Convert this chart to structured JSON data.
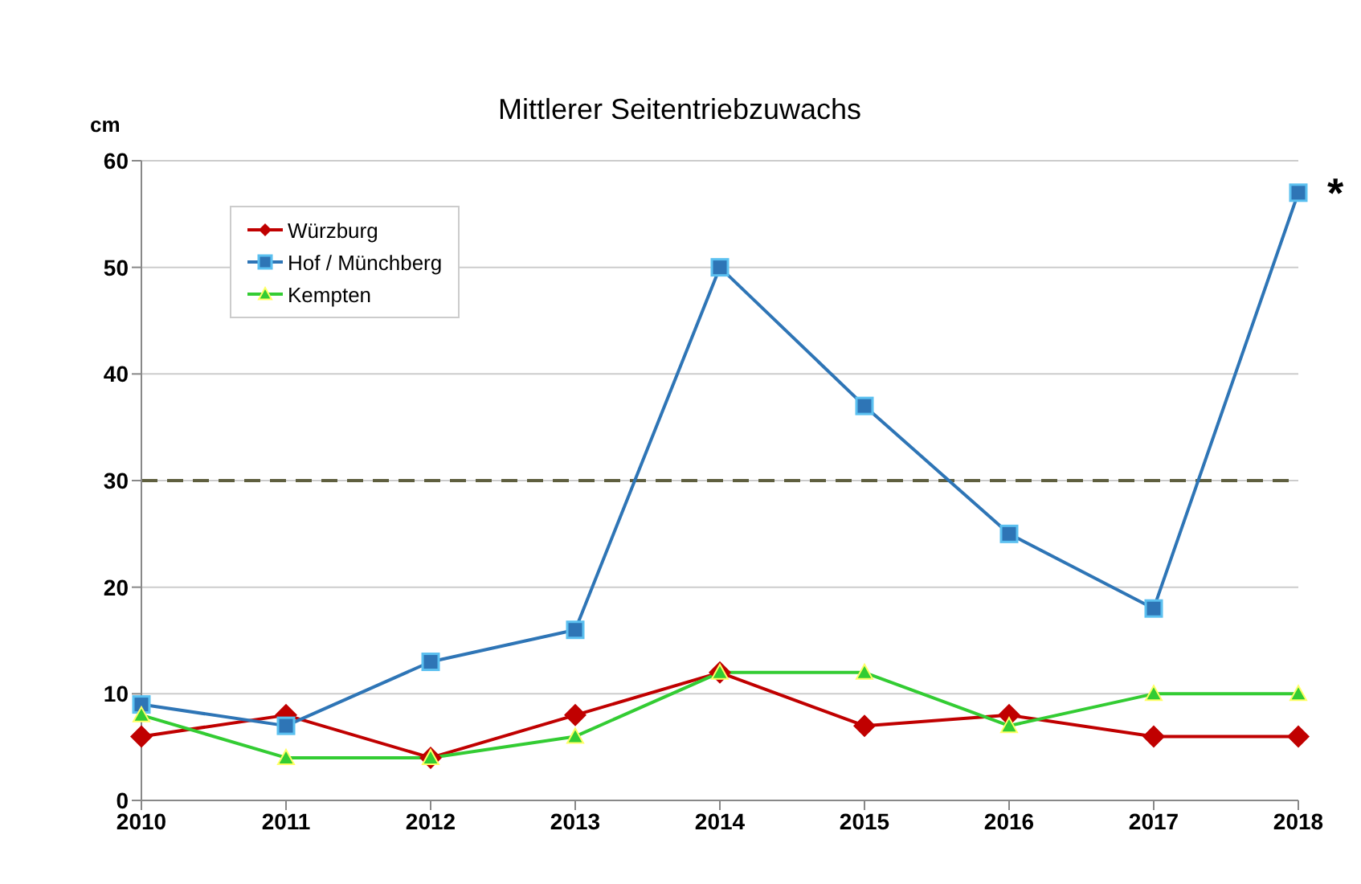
{
  "chart_data": {
    "type": "line",
    "title": "Mittlerer Seitentriebzuwachs",
    "ylabel": "cm",
    "categories": [
      "2010",
      "2011",
      "2012",
      "2013",
      "2014",
      "2015",
      "2016",
      "2017",
      "2018"
    ],
    "series": [
      {
        "name": "Würzburg",
        "color": "#c00000",
        "marker": "diamond",
        "values": [
          6,
          8,
          4,
          8,
          12,
          7,
          8,
          6,
          6
        ]
      },
      {
        "name": "Hof / Münchberg",
        "color": "#2e75b6",
        "marker": "square",
        "values": [
          9,
          7,
          13,
          16,
          50,
          37,
          25,
          18,
          57
        ]
      },
      {
        "name": "Kempten",
        "color": "#33cc33",
        "marker": "triangle",
        "values": [
          8,
          4,
          4,
          6,
          12,
          12,
          7,
          10,
          10
        ]
      }
    ],
    "ylim": [
      0,
      60
    ],
    "yticks": [
      0,
      10,
      20,
      30,
      40,
      50,
      60
    ],
    "grid": "y",
    "legend": "top left",
    "line_style": "solid",
    "ref_lines": [
      {
        "axis": "y",
        "value": 30,
        "color": "#5f5f3f",
        "line_style": "dashed"
      }
    ],
    "annotations": [
      {
        "text": "*",
        "x": "2018",
        "y": 57
      }
    ]
  }
}
